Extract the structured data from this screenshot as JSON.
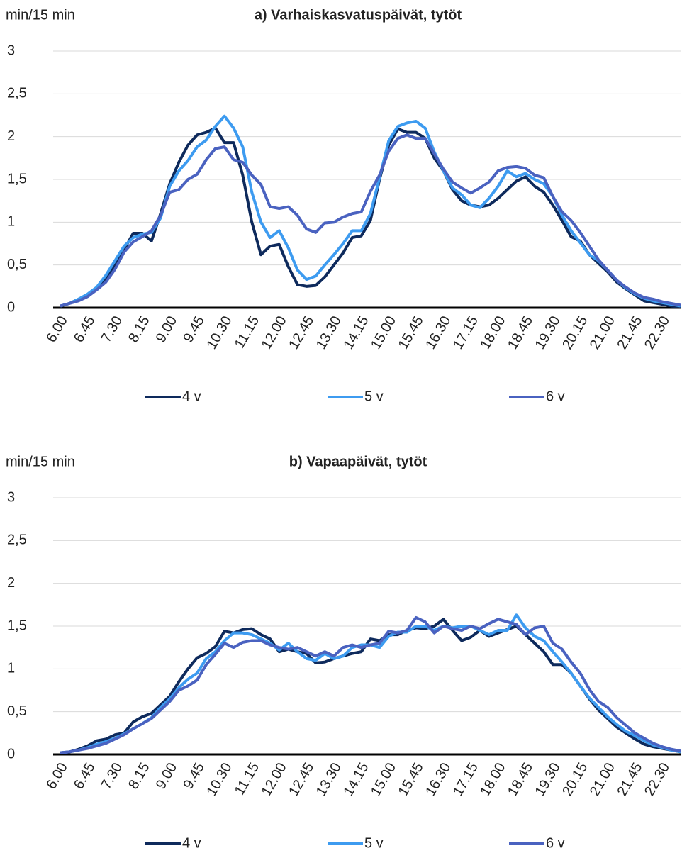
{
  "chart_data": [
    {
      "type": "line",
      "title": "a) Varhaiskasvatuspäivät, tytöt",
      "y_label": "min/15 min",
      "categories": [
        "6.00",
        null,
        null,
        "6.45",
        null,
        null,
        "7.30",
        null,
        null,
        "8.15",
        null,
        null,
        "9.00",
        null,
        null,
        "9.45",
        null,
        null,
        "10.30",
        null,
        null,
        "11.15",
        null,
        null,
        "12.00",
        null,
        null,
        "12.45",
        null,
        null,
        "13.30",
        null,
        null,
        "14.15",
        null,
        null,
        "15.00",
        null,
        null,
        "15.45",
        null,
        null,
        "16.30",
        null,
        null,
        "17.15",
        null,
        null,
        "18.00",
        null,
        null,
        "18.45",
        null,
        null,
        "19.30",
        null,
        null,
        "20.15",
        null,
        null,
        "21.00",
        null,
        null,
        "21.45",
        null,
        null,
        "22.30",
        null,
        null
      ],
      "ylim": [
        0,
        3
      ],
      "yticks": [
        0,
        {
          "value": 0.5,
          "label": "0,5"
        },
        1,
        {
          "value": 1.5,
          "label": "1,5"
        },
        2,
        {
          "value": 2.5,
          "label": "2,5"
        },
        3
      ],
      "grid": true,
      "legend": "bottom",
      "series": [
        {
          "name": "4 v",
          "color": "#0e2a5c",
          "values": [
            0.02,
            0.05,
            0.1,
            0.15,
            0.22,
            0.35,
            0.5,
            0.68,
            0.87,
            0.87,
            0.78,
            1.1,
            1.45,
            1.7,
            1.9,
            2.02,
            2.05,
            2.1,
            1.93,
            1.93,
            1.55,
            1.0,
            0.62,
            0.72,
            0.74,
            0.48,
            0.27,
            0.25,
            0.26,
            0.36,
            0.5,
            0.64,
            0.82,
            0.84,
            1.02,
            1.5,
            1.9,
            2.09,
            2.05,
            2.05,
            1.98,
            1.75,
            1.6,
            1.38,
            1.25,
            1.2,
            1.18,
            1.2,
            1.28,
            1.38,
            1.48,
            1.53,
            1.42,
            1.35,
            1.2,
            1.02,
            0.83,
            0.78,
            0.62,
            0.52,
            0.42,
            0.3,
            0.22,
            0.15,
            0.08,
            0.06,
            0.04,
            0.02,
            0.01
          ]
        },
        {
          "name": "5 v",
          "color": "#3d9bf0",
          "values": [
            0.02,
            0.05,
            0.1,
            0.16,
            0.24,
            0.38,
            0.55,
            0.72,
            0.82,
            0.86,
            0.88,
            1.05,
            1.42,
            1.6,
            1.72,
            1.88,
            1.96,
            2.12,
            2.24,
            2.1,
            1.88,
            1.35,
            1.0,
            0.82,
            0.9,
            0.7,
            0.44,
            0.33,
            0.37,
            0.5,
            0.62,
            0.75,
            0.9,
            0.9,
            1.1,
            1.52,
            1.95,
            2.12,
            2.16,
            2.18,
            2.1,
            1.82,
            1.6,
            1.4,
            1.32,
            1.2,
            1.17,
            1.28,
            1.42,
            1.6,
            1.53,
            1.57,
            1.5,
            1.45,
            1.3,
            1.08,
            0.9,
            0.76,
            0.62,
            0.55,
            0.44,
            0.32,
            0.23,
            0.16,
            0.11,
            0.08,
            0.06,
            0.04,
            0.02
          ]
        },
        {
          "name": "6 v",
          "color": "#4a62c0",
          "values": [
            0.02,
            0.05,
            0.08,
            0.13,
            0.21,
            0.3,
            0.45,
            0.65,
            0.77,
            0.83,
            0.9,
            1.08,
            1.35,
            1.38,
            1.5,
            1.56,
            1.73,
            1.86,
            1.88,
            1.73,
            1.7,
            1.55,
            1.44,
            1.18,
            1.16,
            1.18,
            1.08,
            0.92,
            0.88,
            0.99,
            1.0,
            1.06,
            1.1,
            1.12,
            1.36,
            1.55,
            1.83,
            1.98,
            2.02,
            1.98,
            1.98,
            1.8,
            1.62,
            1.47,
            1.4,
            1.34,
            1.4,
            1.47,
            1.6,
            1.64,
            1.65,
            1.63,
            1.55,
            1.52,
            1.3,
            1.12,
            1.02,
            0.88,
            0.72,
            0.56,
            0.44,
            0.32,
            0.24,
            0.17,
            0.12,
            0.1,
            0.07,
            0.05,
            0.03
          ]
        }
      ]
    },
    {
      "type": "line",
      "title": "b) Vapaapäivät, tytöt",
      "y_label": "min/15 min",
      "categories": [
        "6.00",
        null,
        null,
        "6.45",
        null,
        null,
        "7.30",
        null,
        null,
        "8.15",
        null,
        null,
        "9.00",
        null,
        null,
        "9.45",
        null,
        null,
        "10.30",
        null,
        null,
        "11.15",
        null,
        null,
        "12.00",
        null,
        null,
        "12.45",
        null,
        null,
        "13.30",
        null,
        null,
        "14.15",
        null,
        null,
        "15.00",
        null,
        null,
        "15.45",
        null,
        null,
        "16.30",
        null,
        null,
        "17.15",
        null,
        null,
        "18.00",
        null,
        null,
        "18.45",
        null,
        null,
        "19.30",
        null,
        null,
        "20.15",
        null,
        null,
        "21.00",
        null,
        null,
        "21.45",
        null,
        null,
        "22.30",
        null,
        null
      ],
      "ylim": [
        0,
        3
      ],
      "yticks": [
        0,
        {
          "value": 0.5,
          "label": "0,5"
        },
        1,
        {
          "value": 1.5,
          "label": "1,5"
        },
        2,
        {
          "value": 2.5,
          "label": "2,5"
        },
        3
      ],
      "grid": true,
      "legend": "bottom",
      "series": [
        {
          "name": "4 v",
          "color": "#0e2a5c",
          "values": [
            0.02,
            0.03,
            0.06,
            0.1,
            0.16,
            0.18,
            0.23,
            0.25,
            0.38,
            0.44,
            0.48,
            0.58,
            0.68,
            0.85,
            1.0,
            1.13,
            1.18,
            1.26,
            1.44,
            1.42,
            1.46,
            1.47,
            1.4,
            1.35,
            1.2,
            1.23,
            1.2,
            1.18,
            1.07,
            1.08,
            1.12,
            1.15,
            1.18,
            1.2,
            1.35,
            1.33,
            1.4,
            1.4,
            1.45,
            1.48,
            1.47,
            1.5,
            1.58,
            1.45,
            1.33,
            1.37,
            1.45,
            1.38,
            1.42,
            1.46,
            1.5,
            1.4,
            1.3,
            1.2,
            1.05,
            1.05,
            0.95,
            0.8,
            0.65,
            0.52,
            0.42,
            0.32,
            0.25,
            0.18,
            0.12,
            0.09,
            0.07,
            0.05,
            0.03
          ]
        },
        {
          "name": "5 v",
          "color": "#3d9bf0",
          "values": [
            0.02,
            0.03,
            0.05,
            0.08,
            0.12,
            0.15,
            0.19,
            0.24,
            0.3,
            0.36,
            0.43,
            0.55,
            0.65,
            0.78,
            0.88,
            0.95,
            1.12,
            1.2,
            1.33,
            1.42,
            1.42,
            1.4,
            1.35,
            1.3,
            1.22,
            1.3,
            1.2,
            1.12,
            1.1,
            1.18,
            1.12,
            1.15,
            1.25,
            1.28,
            1.28,
            1.25,
            1.38,
            1.43,
            1.43,
            1.5,
            1.5,
            1.45,
            1.5,
            1.48,
            1.5,
            1.5,
            1.45,
            1.4,
            1.45,
            1.45,
            1.63,
            1.48,
            1.38,
            1.33,
            1.2,
            1.08,
            0.95,
            0.8,
            0.66,
            0.55,
            0.44,
            0.35,
            0.27,
            0.22,
            0.16,
            0.11,
            0.08,
            0.05,
            0.03
          ]
        },
        {
          "name": "6 v",
          "color": "#4a62c0",
          "values": [
            0.02,
            0.03,
            0.05,
            0.07,
            0.1,
            0.13,
            0.18,
            0.23,
            0.3,
            0.36,
            0.42,
            0.52,
            0.62,
            0.75,
            0.8,
            0.87,
            1.05,
            1.17,
            1.3,
            1.25,
            1.31,
            1.33,
            1.33,
            1.28,
            1.25,
            1.23,
            1.25,
            1.2,
            1.15,
            1.2,
            1.15,
            1.25,
            1.28,
            1.25,
            1.28,
            1.3,
            1.44,
            1.42,
            1.45,
            1.6,
            1.55,
            1.42,
            1.5,
            1.47,
            1.45,
            1.5,
            1.47,
            1.53,
            1.58,
            1.55,
            1.52,
            1.4,
            1.48,
            1.5,
            1.3,
            1.23,
            1.08,
            0.95,
            0.76,
            0.62,
            0.55,
            0.43,
            0.34,
            0.25,
            0.19,
            0.13,
            0.09,
            0.06,
            0.04
          ]
        }
      ]
    }
  ]
}
